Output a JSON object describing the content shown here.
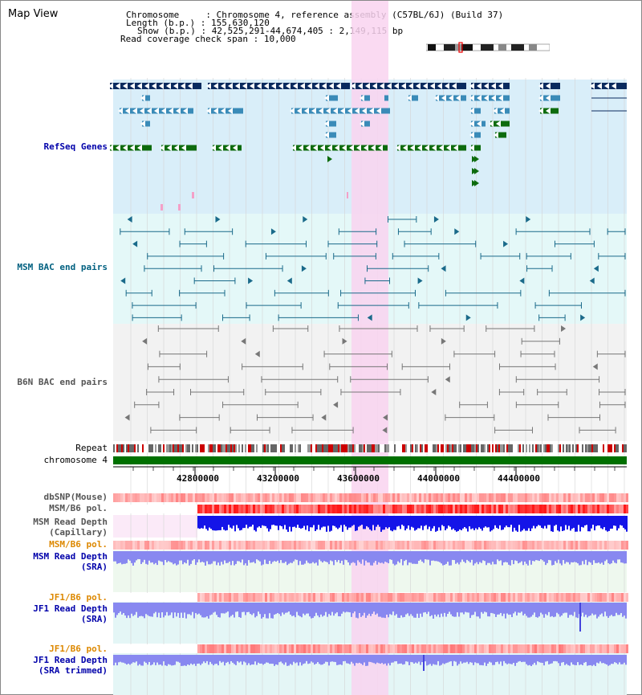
{
  "view_title": "Map View",
  "info": {
    "chromosome_label": "Chromosome",
    "chromosome_value": "Chromosome 4, reference assembly (C57BL/6J) (Build 37)",
    "length_label": "Length (b.p.)",
    "length_value": "155,630,120",
    "show_label": "Show (b.p.)",
    "show_value": "42,525,291-44,674,405 : 2,149,115 bp",
    "coverage_label": "Read coverage check span",
    "coverage_value": "10,000"
  },
  "tracks": {
    "refseq": {
      "label": "RefSeq Genes",
      "color": "#0000aa"
    },
    "msm_bac": {
      "label": "MSM BAC end pairs",
      "color": "#006080"
    },
    "b6n_bac": {
      "label": "B6N BAC end pairs",
      "color": "#555555"
    },
    "repeat": {
      "label": "Repeat"
    },
    "chromosome": {
      "label": "chromosome 4",
      "color": "#006600"
    },
    "dbsnp": {
      "label": "dbSNP(Mouse)",
      "color": "#555555"
    },
    "msm_b6_pol": {
      "label": "MSM/B6 pol.",
      "color": "#555555"
    },
    "msm_depth_cap": {
      "label_line1": "MSM Read Depth",
      "label_line2": "(Capillary)",
      "color": "#555555"
    },
    "msm_b6_pol2": {
      "label": "MSM/B6 pol.",
      "color": "#dd8800"
    },
    "msm_depth_sra": {
      "label_line1": "MSM Read Depth",
      "label_line2": "(SRA)",
      "color": "#0000aa"
    },
    "jf1_b6_pol": {
      "label": "JF1/B6 pol.",
      "color": "#dd8800"
    },
    "jf1_depth_sra": {
      "label_line1": "JF1 Read Depth",
      "label_line2": "(SRA)",
      "color": "#0000aa"
    },
    "jf1_b6_pol2": {
      "label": "JF1/B6 pol.",
      "color": "#dd8800"
    },
    "jf1_depth_trim": {
      "label_line1": "JF1 Read Depth",
      "label_line2": "(SRA trimmed)",
      "color": "#0000aa"
    }
  },
  "axis": {
    "ticks": [
      "42800000",
      "43200000",
      "43600000",
      "44000000",
      "44400000"
    ]
  },
  "colors": {
    "highlight": "#f9d4f0",
    "refseq_bg": "#d9eef9",
    "msm_bg": "#e4f8f8",
    "b6n_bg": "#f2f2f2",
    "gene_dark": "#0a2a5e",
    "gene_mid": "#3a8bb8",
    "gene_green": "#0d6b0d",
    "bac_msm": "#1a6a8a",
    "bac_b6n": "#777777",
    "chrom_bar": "#007000",
    "depth_blue": "#1414e8",
    "depth_light": "#8888f0"
  }
}
